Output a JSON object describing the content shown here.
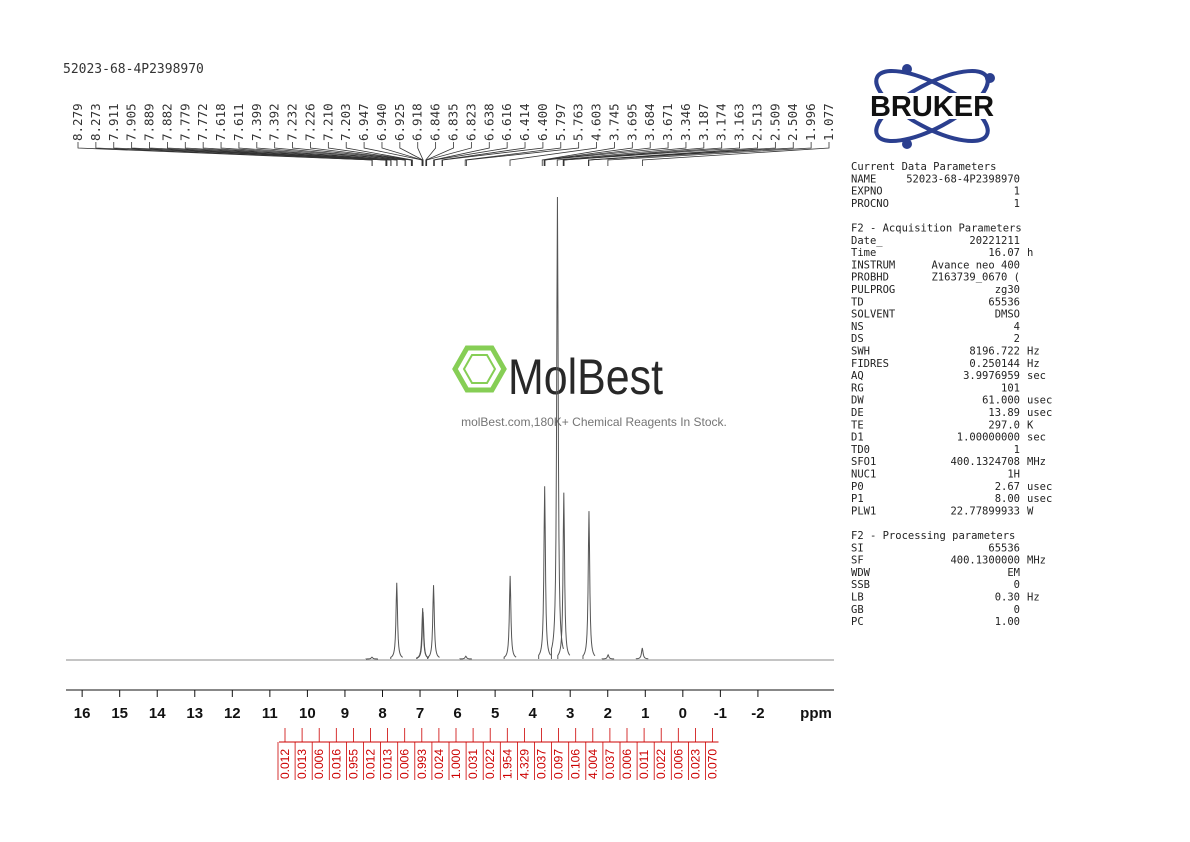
{
  "sample_id": "52023-68-4P2398970",
  "logo": "BRUKER",
  "watermark": {
    "brand": "MolBest",
    "tagline": "molBest.com,180K+ Chemical Reagents In Stock."
  },
  "chart_data": {
    "type": "spectrum",
    "x_label": "ppm",
    "xlim": [
      16.43,
      -4.0
    ],
    "xticks": [
      16,
      15,
      14,
      13,
      12,
      11,
      10,
      9,
      8,
      7,
      6,
      5,
      4,
      3,
      2,
      1,
      0,
      -1,
      -2
    ],
    "ylim": [
      0,
      100
    ],
    "color": "#555555",
    "x": [
      8.28,
      7.62,
      6.93,
      6.92,
      6.64,
      5.78,
      4.6,
      3.68,
      3.34,
      3.17,
      2.5,
      1.99,
      1.08
    ],
    "values": [
      0.4,
      16.5,
      11,
      10.2,
      16,
      0.6,
      18,
      37.4,
      100,
      36,
      32,
      0.9,
      2.4
    ],
    "peak_labels": [
      8.279,
      8.273,
      7.911,
      7.905,
      7.889,
      7.882,
      7.779,
      7.772,
      7.618,
      7.611,
      7.399,
      7.392,
      7.232,
      7.226,
      {
        "value": 7.21,
        "label": "7.210"
      },
      7.203,
      6.947,
      {
        "value": 6.94,
        "label": "6.940"
      },
      6.925,
      6.918,
      6.846,
      6.835,
      6.823,
      6.638,
      6.616,
      6.414,
      {
        "value": 6.4,
        "label": "6.400"
      },
      5.797,
      5.763,
      4.603,
      3.745,
      3.695,
      3.684,
      3.671,
      3.346,
      3.187,
      3.174,
      3.163,
      2.513,
      2.509,
      2.504,
      1.996,
      1.077
    ],
    "integral_color": "#cc0000",
    "integrals": [
      0.012,
      0.013,
      0.006,
      0.016,
      0.955,
      0.012,
      0.013,
      0.006,
      0.993,
      0.024,
      {
        "value": 1,
        "label": "1.000"
      },
      0.031,
      0.022,
      1.954,
      4.329,
      0.037,
      0.097,
      0.106,
      4.004,
      0.037,
      0.006,
      0.011,
      0.022,
      0.006,
      0.023,
      {
        "value": 0.07,
        "label": "0.070"
      }
    ]
  },
  "parameters": [
    {
      "title": "Current Data Parameters",
      "rows": [
        [
          "NAME",
          "52023-68-4P2398970",
          ""
        ],
        [
          "EXPNO",
          "1",
          ""
        ],
        [
          "PROCNO",
          "1",
          ""
        ]
      ]
    },
    {
      "title": "F2 - Acquisition Parameters",
      "rows": [
        [
          "Date_",
          "20221211",
          ""
        ],
        [
          "Time",
          "16.07",
          "h"
        ],
        [
          "INSTRUM",
          "Avance neo 400",
          ""
        ],
        [
          "PROBHD",
          "Z163739_0670 (",
          ""
        ],
        [
          "PULPROG",
          "zg30",
          ""
        ],
        [
          "TD",
          "65536",
          ""
        ],
        [
          "SOLVENT",
          "DMSO",
          ""
        ],
        [
          "NS",
          "4",
          ""
        ],
        [
          "DS",
          "2",
          ""
        ],
        [
          "SWH",
          "8196.722",
          "Hz"
        ],
        [
          "FIDRES",
          "0.250144",
          "Hz"
        ],
        [
          "AQ",
          "3.9976959",
          "sec"
        ],
        [
          "RG",
          "101",
          ""
        ],
        [
          "DW",
          "61.000",
          "usec"
        ],
        [
          "DE",
          "13.89",
          "usec"
        ],
        [
          "TE",
          "297.0",
          "K"
        ],
        [
          "D1",
          "1.00000000",
          "sec"
        ],
        [
          "TD0",
          "1",
          ""
        ],
        [
          "SFO1",
          "400.1324708",
          "MHz"
        ],
        [
          "NUC1",
          "1H",
          ""
        ],
        [
          "P0",
          "2.67",
          "usec"
        ],
        [
          "P1",
          "8.00",
          "usec"
        ],
        [
          "PLW1",
          "22.77899933",
          "W"
        ]
      ]
    },
    {
      "title": "F2 - Processing parameters",
      "rows": [
        [
          "SI",
          "65536",
          ""
        ],
        [
          "SF",
          "400.1300000",
          "MHz"
        ],
        [
          "WDW",
          "EM",
          ""
        ],
        [
          "SSB",
          "0",
          ""
        ],
        [
          "LB",
          "0.30",
          "Hz"
        ],
        [
          "GB",
          "0",
          ""
        ],
        [
          "PC",
          "1.00",
          ""
        ]
      ]
    }
  ]
}
